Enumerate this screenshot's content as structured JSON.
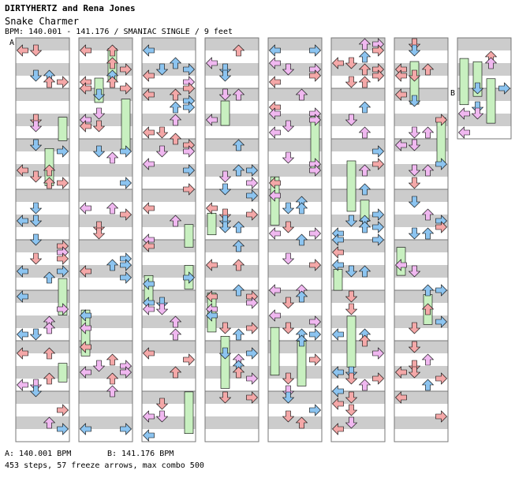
{
  "song": {
    "artist": "DIRTYHERTZ and Rena Jones",
    "title": "Snake Charmer",
    "info": "BPM: 140.001 - 141.176 / SMANIAC SINGLE / 9 feet"
  },
  "markers": {
    "a": "A",
    "b": "B"
  },
  "bpm_changes": {
    "a": "A: 140.001 BPM",
    "b": "B: 141.176 BPM"
  },
  "stats": "453 steps, 57 freeze arrows, max combo 500",
  "colors": {
    "note_red": "#f4a8a8",
    "note_blue": "#8cc4f0",
    "note_pink": "#f0b8f0",
    "freeze": "#c8f0c0",
    "stripe": "#cccccc"
  }
}
